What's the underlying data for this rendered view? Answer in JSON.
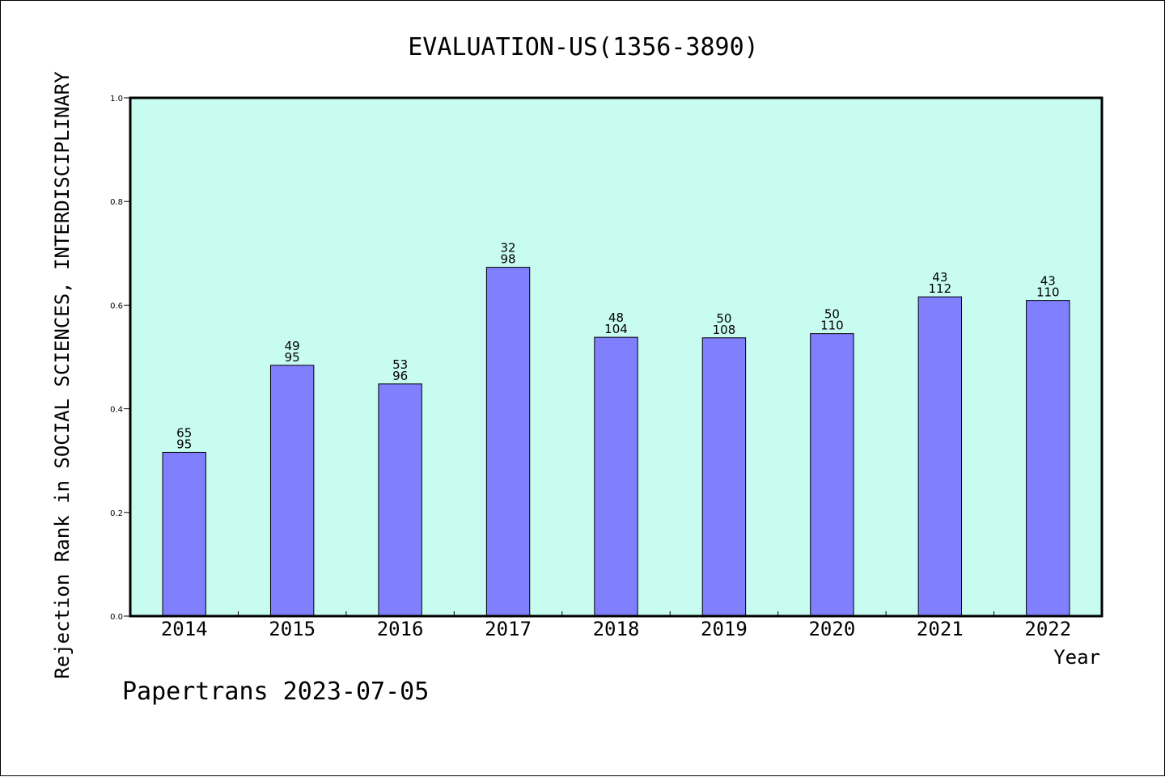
{
  "chart_data": {
    "type": "bar",
    "title": "EVALUATION-US(1356-3890)",
    "xlabel": "Year",
    "ylabel": "Rejection Rank in SOCIAL SCIENCES, INTERDISCIPLINARY",
    "categories": [
      "2014",
      "2015",
      "2016",
      "2017",
      "2018",
      "2019",
      "2020",
      "2021",
      "2022"
    ],
    "values": [
      0.316,
      0.484,
      0.448,
      0.673,
      0.538,
      0.537,
      0.545,
      0.616,
      0.609
    ],
    "label_top": [
      "65",
      "49",
      "53",
      "32",
      "48",
      "50",
      "50",
      "43",
      "43"
    ],
    "label_bottom": [
      "95",
      "95",
      "96",
      "98",
      "104",
      "108",
      "110",
      "112",
      "110"
    ],
    "ylim": [
      0,
      1.0
    ],
    "yticks": [
      "0.0",
      "0.2",
      "0.4",
      "0.6",
      "0.8",
      "1.0"
    ],
    "grid": false,
    "colors": {
      "plot_background": "#c8fcf0",
      "bar_fill": "#8080ff",
      "bar_stroke": "#000000"
    }
  },
  "footer": "Papertrans 2023-07-05"
}
